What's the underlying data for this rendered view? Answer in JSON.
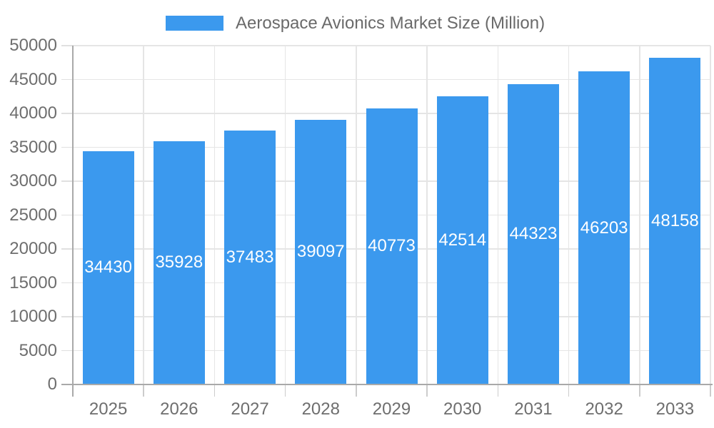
{
  "chart_data": {
    "type": "bar",
    "title": "Aerospace Avionics Market Size (Million)",
    "legend": "Aerospace Avionics Market Size (Million)",
    "legend_position": "top-center",
    "categories": [
      "2025",
      "2026",
      "2027",
      "2028",
      "2029",
      "2030",
      "2031",
      "2032",
      "2033"
    ],
    "values": [
      34430,
      35928,
      37483,
      39097,
      40773,
      42514,
      44323,
      46203,
      48158
    ],
    "xlabel": "",
    "ylabel": "",
    "ylim": [
      0,
      50000
    ],
    "y_ticks": [
      0,
      5000,
      10000,
      15000,
      20000,
      25000,
      30000,
      35000,
      40000,
      45000,
      50000
    ],
    "grid": true,
    "bar_label_position": "inside-middle",
    "colors": {
      "bar": "#3B99EE",
      "bar_label": "#FFFFFF",
      "axis_text": "#6E6E6E",
      "legend_text": "#6A6A6A",
      "gridline": "#E5E5E5",
      "axis_line": "#A9A9A9",
      "background": "#FFFFFF"
    }
  }
}
